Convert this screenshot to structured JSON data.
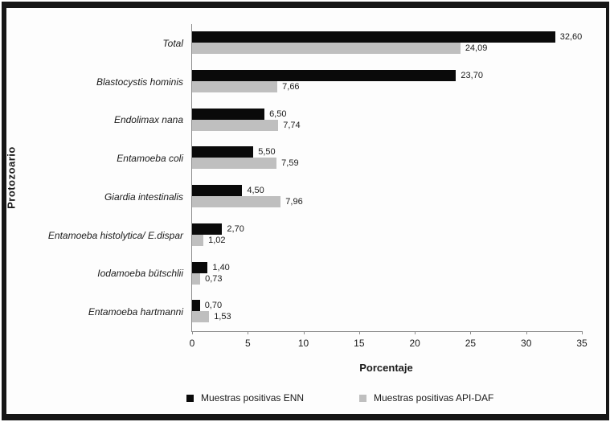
{
  "chart_data": {
    "type": "bar",
    "orientation": "horizontal",
    "categories": [
      "Total",
      "Blastocystis hominis",
      "Endolimax nana",
      "Entamoeba coli",
      "Giardia intestinalis",
      "Entamoeba histolytica/ E.dispar",
      "Iodamoeba bütschlii",
      "Entamoeba hartmanni"
    ],
    "series": [
      {
        "name": "Muestras positivas ENN",
        "color": "#0a0a0a",
        "values": [
          32.6,
          23.7,
          6.5,
          5.5,
          4.5,
          2.7,
          1.4,
          0.7
        ],
        "labels": [
          "32,60",
          "23,70",
          "6,50",
          "5,50",
          "4,50",
          "2,70",
          "1,40",
          "0,70"
        ]
      },
      {
        "name": "Muestras positivas API-DAF",
        "color": "#bfbfbf",
        "values": [
          24.09,
          7.66,
          7.74,
          7.59,
          7.96,
          1.02,
          0.73,
          1.53
        ],
        "labels": [
          "24,09",
          "7,66",
          "7,74",
          "7,59",
          "7,96",
          "1,02",
          "0,73",
          "1,53"
        ]
      }
    ],
    "xlabel": "Porcentaje",
    "ylabel": "Protozoario",
    "xlim": [
      0,
      35
    ],
    "x_ticks": [
      "0",
      "5",
      "10",
      "15",
      "20",
      "25",
      "30",
      "35"
    ],
    "grid": false,
    "legend_position": "bottom",
    "value_label_format": "comma-decimal",
    "axis_color": "#8c8c8c",
    "frame_color": "#161616"
  }
}
